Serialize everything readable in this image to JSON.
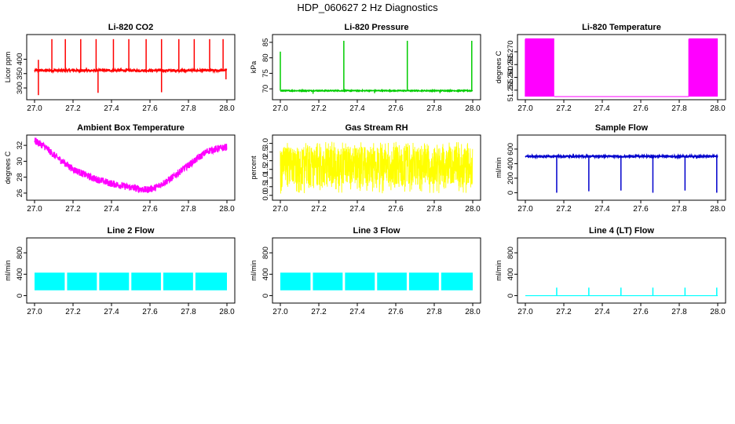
{
  "figure_title": "HDP_060627  2 Hz Diagnostics",
  "colors": {
    "red": "#ff0000",
    "green": "#00cc00",
    "magenta": "#ff00ff",
    "yellow": "#ffff00",
    "blue": "#0000cc",
    "cyan": "#00ffff",
    "axis": "#000000"
  },
  "chart_data": [
    {
      "type": "line",
      "title": "Li-820 CO2",
      "ylabel": "Licor ppm",
      "xlabel": "",
      "color_key": "red",
      "xlim": [
        27.0,
        28.0
      ],
      "ylim": [
        270,
        475
      ],
      "xticks": [
        "27.0",
        "27.2",
        "27.4",
        "27.6",
        "27.8",
        "28.0"
      ],
      "yticks": [
        "300",
        "350",
        "400"
      ],
      "series": [
        {
          "name": "CO2",
          "baseline": 361,
          "band": 4,
          "spikes": [
            [
              27.02,
              398
            ],
            [
              27.09,
              470
            ],
            [
              27.16,
              470
            ],
            [
              27.24,
              470
            ],
            [
              27.32,
              470
            ],
            [
              27.41,
              470
            ],
            [
              27.49,
              470
            ],
            [
              27.58,
              470
            ],
            [
              27.66,
              470
            ],
            [
              27.75,
              470
            ],
            [
              27.83,
              470
            ],
            [
              27.91,
              470
            ],
            [
              27.98,
              470
            ]
          ],
          "dips": [
            [
              27.02,
              275
            ],
            [
              27.33,
              283
            ],
            [
              27.66,
              285
            ],
            [
              27.995,
              330
            ]
          ]
        }
      ]
    },
    {
      "type": "line",
      "title": "Li-820 Pressure",
      "ylabel": "kPa",
      "xlabel": "",
      "color_key": "green",
      "xlim": [
        27.0,
        28.0
      ],
      "ylim": [
        67.5,
        86.5
      ],
      "xticks": [
        "27.0",
        "27.2",
        "27.4",
        "27.6",
        "27.8",
        "28.0"
      ],
      "yticks": [
        "70",
        "75",
        "80",
        "85"
      ],
      "series": [
        {
          "name": "Pressure",
          "baseline": 69.4,
          "band": 0.15,
          "spikes": [
            [
              27.0,
              82
            ],
            [
              27.33,
              85.5
            ],
            [
              27.66,
              85.5
            ],
            [
              27.995,
              85.5
            ]
          ],
          "dips": [
            [
              27.17,
              68.4
            ],
            [
              27.49,
              68.6
            ],
            [
              27.83,
              68.6
            ]
          ]
        }
      ]
    },
    {
      "type": "line",
      "title": "Li-820 Temperature",
      "ylabel": "degrees C",
      "xlabel": "",
      "color_key": "magenta",
      "xlim": [
        27.0,
        28.0
      ],
      "ylim": [
        51.2525,
        51.2755
      ],
      "xticks": [
        "27.0",
        "27.2",
        "27.4",
        "27.6",
        "27.8",
        "28.0"
      ],
      "yticks": [
        "51.255",
        "51.260",
        "51.265",
        "51.270"
      ],
      "series": [
        {
          "name": "Temperature",
          "low": 51.2525,
          "high": 51.275,
          "segments": [
            [
              27.0,
              27.15,
              "toggle"
            ],
            [
              27.15,
              27.85,
              "low"
            ],
            [
              27.85,
              28.0,
              "toggle"
            ]
          ]
        }
      ]
    },
    {
      "type": "line",
      "title": "Ambient Box Temperature",
      "ylabel": "degrees C",
      "xlabel": "",
      "color_key": "magenta",
      "xlim": [
        27.0,
        28.0
      ],
      "ylim": [
        25.5,
        32.9
      ],
      "xticks": [
        "27.0",
        "27.2",
        "27.4",
        "27.6",
        "27.8",
        "28.0"
      ],
      "yticks": [
        "26",
        "28",
        "30",
        "32"
      ],
      "series": [
        {
          "name": "Box Temp",
          "band": 0.45,
          "x": [
            27.0,
            27.05,
            27.1,
            27.2,
            27.3,
            27.4,
            27.5,
            27.58,
            27.63,
            27.7,
            27.8,
            27.9,
            28.0
          ],
          "y": [
            32.6,
            31.9,
            30.8,
            29.0,
            27.9,
            27.2,
            26.7,
            26.4,
            26.7,
            27.7,
            29.5,
            31.3,
            31.8
          ]
        }
      ]
    },
    {
      "type": "line",
      "title": "Gas Stream RH",
      "ylabel": "percent",
      "xlabel": "",
      "color_key": "yellow",
      "xlim": [
        27.0,
        28.0
      ],
      "ylim": [
        -0.1,
        3.3
      ],
      "xticks": [
        "27.0",
        "27.2",
        "27.4",
        "27.6",
        "27.8",
        "28.0"
      ],
      "yticks": [
        "0.0",
        "0.5",
        "1.0",
        "1.5",
        "2.0",
        "2.5",
        "3.0"
      ],
      "series": [
        {
          "name": "RH",
          "baseline": 1.7,
          "noise_low": 0.1,
          "noise_high": 3.1
        }
      ]
    },
    {
      "type": "line",
      "title": "Sample Flow",
      "ylabel": "ml/min",
      "xlabel": "",
      "color_key": "blue",
      "xlim": [
        27.0,
        28.0
      ],
      "ylim": [
        -60,
        750
      ],
      "xticks": [
        "27.0",
        "27.2",
        "27.4",
        "27.6",
        "27.8",
        "28.0"
      ],
      "yticks": [
        "0",
        "200",
        "400",
        "600"
      ],
      "series": [
        {
          "name": "Sample Flow",
          "baseline": 500,
          "band": 12,
          "dips": [
            [
              27.163,
              0
            ],
            [
              27.33,
              20
            ],
            [
              27.497,
              30
            ],
            [
              27.663,
              0
            ],
            [
              27.83,
              30
            ],
            [
              27.995,
              0
            ]
          ]
        }
      ]
    },
    {
      "type": "line",
      "title": "Line 2 Flow",
      "ylabel": "ml/min",
      "xlabel": "",
      "color_key": "cyan",
      "xlim": [
        27.0,
        28.0
      ],
      "ylim": [
        -80,
        1020
      ],
      "xticks": [
        "27.0",
        "27.2",
        "27.4",
        "27.6",
        "27.8",
        "28.0"
      ],
      "yticks": [
        "0",
        "400",
        "800"
      ],
      "series": [
        {
          "name": "Line 2",
          "band_low": 100,
          "band_high": 430,
          "gaps": [
            27.163,
            27.33,
            27.497,
            27.663,
            27.83
          ]
        }
      ]
    },
    {
      "type": "line",
      "title": "Line 3 Flow",
      "ylabel": "ml/min",
      "xlabel": "",
      "color_key": "cyan",
      "xlim": [
        27.0,
        28.0
      ],
      "ylim": [
        -80,
        1020
      ],
      "xticks": [
        "27.0",
        "27.2",
        "27.4",
        "27.6",
        "27.8",
        "28.0"
      ],
      "yticks": [
        "0",
        "400",
        "800"
      ],
      "series": [
        {
          "name": "Line 3",
          "band_low": 100,
          "band_high": 430,
          "gaps": [
            27.163,
            27.33,
            27.497,
            27.663,
            27.83
          ]
        }
      ]
    },
    {
      "type": "line",
      "title": "Line 4 (LT) Flow",
      "ylabel": "ml/min",
      "xlabel": "",
      "color_key": "cyan",
      "xlim": [
        27.0,
        28.0
      ],
      "ylim": [
        -80,
        1020
      ],
      "xticks": [
        "27.0",
        "27.2",
        "27.4",
        "27.6",
        "27.8",
        "28.0"
      ],
      "yticks": [
        "0",
        "400",
        "800"
      ],
      "series": [
        {
          "name": "Line 4",
          "baseline": 0,
          "spikes": [
            [
              27.163,
              150
            ],
            [
              27.33,
              150
            ],
            [
              27.497,
              150
            ],
            [
              27.663,
              150
            ],
            [
              27.83,
              150
            ],
            [
              27.995,
              150
            ]
          ]
        }
      ]
    }
  ]
}
